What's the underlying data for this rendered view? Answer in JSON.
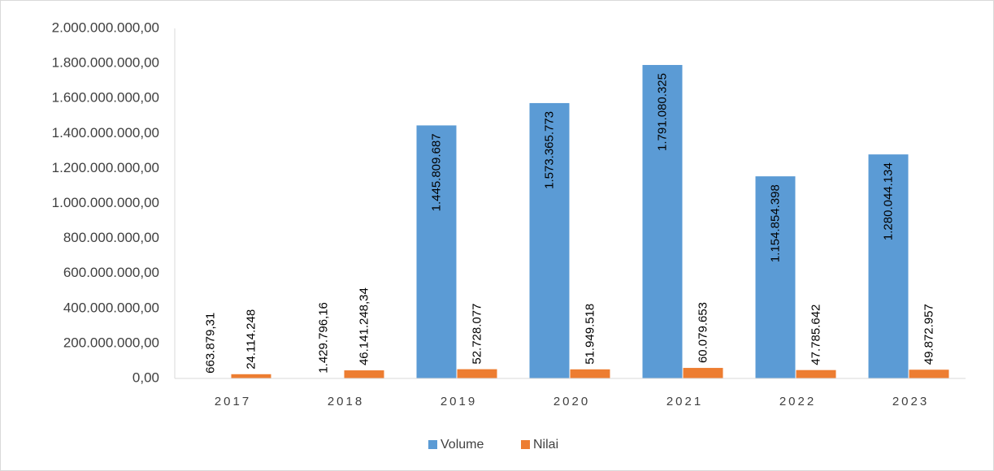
{
  "chart_data": {
    "type": "bar",
    "categories": [
      "2017",
      "2018",
      "2019",
      "2020",
      "2021",
      "2022",
      "2023"
    ],
    "series": [
      {
        "name": "Volume",
        "color": "#5b9bd5",
        "values": [
          663879.31,
          1429796.16,
          1445809687,
          1573365773,
          1791080325,
          1154854398,
          1280044134
        ],
        "value_labels": [
          "663.879,31",
          "1.429.796,16",
          "1.445.809.687",
          "1.573.365.773",
          "1.791.080.325",
          "1.154.854.398",
          "1.280.044.134"
        ]
      },
      {
        "name": "Nilai",
        "color": "#ed7d31",
        "values": [
          24114248,
          46141248.34,
          52728077,
          51949518,
          60079653,
          47785642,
          49872957
        ],
        "value_labels": [
          "24.114.248",
          "46.141.248,34",
          "52.728.077",
          "51.949.518",
          "60.079.653",
          "47.785.642",
          "49.872.957"
        ]
      }
    ],
    "ylim": [
      0,
      2000000000
    ],
    "yticks": [
      {
        "value": 0,
        "label": "0,00"
      },
      {
        "value": 200000000,
        "label": "200.000.000,00"
      },
      {
        "value": 400000000,
        "label": "400.000.000,00"
      },
      {
        "value": 600000000,
        "label": "600.000.000,00"
      },
      {
        "value": 800000000,
        "label": "800.000.000,00"
      },
      {
        "value": 1000000000,
        "label": "1.000.000.000,00"
      },
      {
        "value": 1200000000,
        "label": "1.200.000.000,00"
      },
      {
        "value": 1400000000,
        "label": "1.400.000.000,00"
      },
      {
        "value": 1600000000,
        "label": "1.600.000.000,00"
      },
      {
        "value": 1800000000,
        "label": "1.800.000.000,00"
      },
      {
        "value": 2000000000,
        "label": "2.000.000.000,00"
      }
    ],
    "grid": false,
    "legend": "bottom"
  }
}
